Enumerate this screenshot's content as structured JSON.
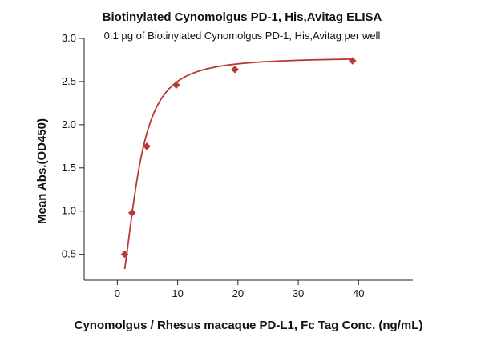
{
  "chart_data": {
    "type": "scatter",
    "title": "Biotinylated Cynomolgus PD-1, His,Avitag ELISA",
    "subtitle": "0.1 µg of Biotinylated Cynomolgus PD-1, His,Avitag per well",
    "xlabel": "Cynomolgus / Rhesus macaque PD-L1, Fc Tag Conc. (ng/mL)",
    "ylabel": "Mean Abs.(OD450)",
    "xlim": [
      -5.5,
      49
    ],
    "ylim": [
      0.2,
      3.0
    ],
    "xticks": [
      0,
      10,
      20,
      30,
      40
    ],
    "yticks": [
      0.5,
      1.0,
      1.5,
      2.0,
      2.5,
      3.0
    ],
    "xtick_labels": [
      "0",
      "10",
      "20",
      "30",
      "40"
    ],
    "ytick_labels": [
      "0.5",
      "1.0",
      "1.5",
      "2.0",
      "2.5",
      "3.0"
    ],
    "grid": false,
    "color": "#b83a35",
    "series": [
      {
        "points": [
          {
            "x": 1.22,
            "y": 0.5
          },
          {
            "x": 2.44,
            "y": 0.98
          },
          {
            "x": 4.88,
            "y": 1.75
          },
          {
            "x": 9.77,
            "y": 2.46
          },
          {
            "x": 19.5,
            "y": 2.64
          },
          {
            "x": 39.0,
            "y": 2.74
          }
        ],
        "fit_curve": {
          "model": "four-parameter logistic",
          "bottom": 0.0,
          "top": 2.78,
          "ec50": 3.33,
          "hill": 2.0,
          "x_range": [
            1.22,
            39.0
          ]
        }
      }
    ]
  }
}
